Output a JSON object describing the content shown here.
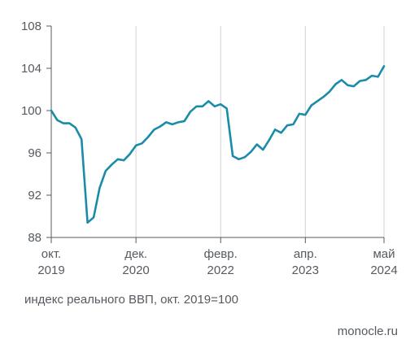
{
  "chart_data": {
    "type": "line",
    "title": "",
    "caption": "индекс реального ВВП, окт. 2019=100",
    "source": "monocle.ru",
    "ylim": [
      88,
      108
    ],
    "y_ticks": [
      88,
      92,
      96,
      100,
      104,
      108
    ],
    "x_ticks": [
      {
        "line1": "окт.",
        "line2": "2019",
        "month_index": 0
      },
      {
        "line1": "дек.",
        "line2": "2020",
        "month_index": 14
      },
      {
        "line1": "февр.",
        "line2": "2022",
        "month_index": 28
      },
      {
        "line1": "апр.",
        "line2": "2023",
        "month_index": 42
      },
      {
        "line1": "май",
        "line2": "2024",
        "month_index": 55
      }
    ],
    "grid": "vertical",
    "line_color": "#1a8ca8",
    "axis_color": "#555a60",
    "grid_color": "#cfd3d6",
    "series": [
      {
        "name": "",
        "values": [
          100.0,
          99.1,
          98.8,
          98.8,
          98.4,
          97.3,
          89.4,
          89.9,
          92.7,
          94.3,
          94.9,
          95.4,
          95.3,
          95.9,
          96.7,
          96.9,
          97.5,
          98.2,
          98.5,
          98.9,
          98.7,
          98.9,
          99.0,
          99.9,
          100.4,
          100.4,
          100.9,
          100.4,
          100.6,
          100.2,
          95.7,
          95.4,
          95.6,
          96.1,
          96.8,
          96.3,
          97.2,
          98.2,
          97.9,
          98.6,
          98.7,
          99.7,
          99.6,
          100.5,
          100.9,
          101.3,
          101.8,
          102.5,
          102.9,
          102.4,
          102.3,
          102.8,
          102.9,
          103.3,
          103.2,
          104.2
        ]
      }
    ]
  }
}
